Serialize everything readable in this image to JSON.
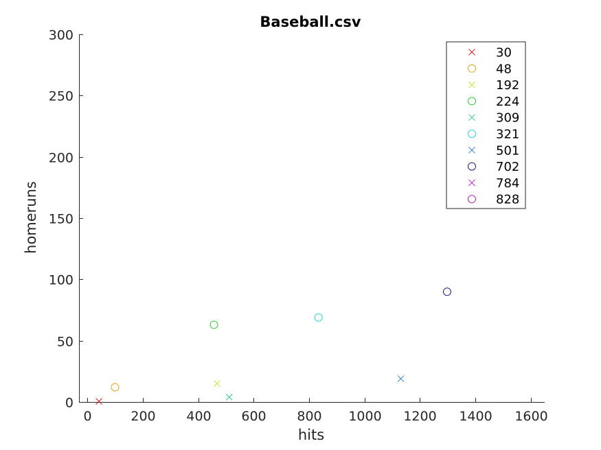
{
  "chart_data": {
    "type": "scatter",
    "title": "Baseball.csv",
    "xlabel": "hits",
    "ylabel": "homeruns",
    "xlim": [
      -30,
      1650
    ],
    "ylim": [
      0,
      300
    ],
    "xticks": [
      0,
      200,
      400,
      600,
      800,
      1000,
      1200,
      1400,
      1600
    ],
    "yticks": [
      0,
      50,
      100,
      150,
      200,
      250,
      300
    ],
    "grid": false,
    "legend_position": "top-right",
    "series": [
      {
        "name": "30",
        "marker": "x",
        "color": "#e31a1c",
        "x": [
          42
        ],
        "y": [
          0.5
        ]
      },
      {
        "name": "48",
        "marker": "o",
        "color": "#e8a317",
        "x": [
          100
        ],
        "y": [
          12
        ]
      },
      {
        "name": "192",
        "marker": "x",
        "color": "#c8e32a",
        "x": [
          468
        ],
        "y": [
          15
        ]
      },
      {
        "name": "224",
        "marker": "o",
        "color": "#33cc33",
        "x": [
          457
        ],
        "y": [
          63
        ]
      },
      {
        "name": "309",
        "marker": "x",
        "color": "#2ecc8f",
        "x": [
          512
        ],
        "y": [
          4
        ]
      },
      {
        "name": "321",
        "marker": "o",
        "color": "#33d6d6",
        "x": [
          834
        ],
        "y": [
          69
        ]
      },
      {
        "name": "501",
        "marker": "x",
        "color": "#2c7fd6",
        "x": [
          1131
        ],
        "y": [
          19
        ]
      },
      {
        "name": "702",
        "marker": "o",
        "color": "#2a1a8c",
        "x": [
          1298
        ],
        "y": [
          90
        ]
      },
      {
        "name": "784",
        "marker": "x",
        "color": "#c42bd6",
        "x": [],
        "y": []
      },
      {
        "name": "828",
        "marker": "o",
        "color": "#c422b0",
        "x": [],
        "y": []
      }
    ]
  }
}
